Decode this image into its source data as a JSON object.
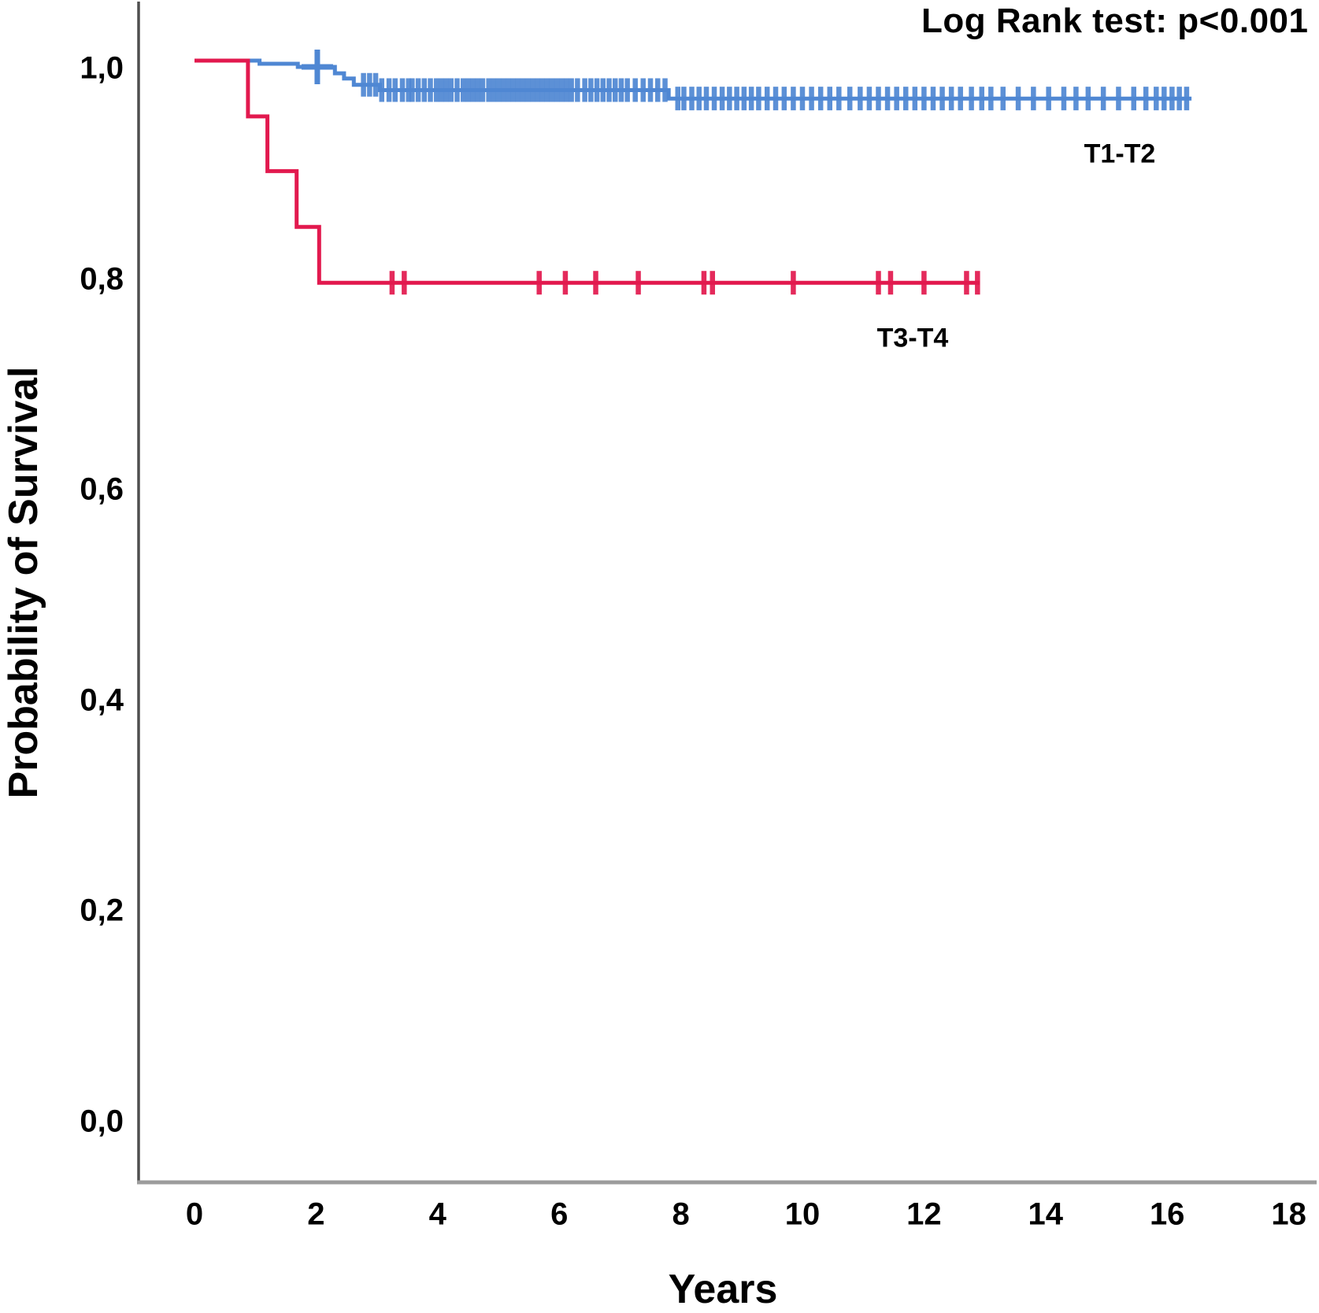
{
  "chart_data": {
    "type": "line",
    "subtype": "kaplan-meier-step",
    "title": "",
    "annotation": "Log Rank test: p<0.001",
    "xlabel": "Years",
    "ylabel": "Probability of Survival",
    "xlim": [
      0,
      18
    ],
    "ylim": [
      0.0,
      1.0
    ],
    "grid": false,
    "xticks": {
      "values": [
        0,
        2,
        4,
        6,
        8,
        10,
        12,
        14,
        16,
        18
      ],
      "labels": [
        "0",
        "2",
        "4",
        "6",
        "8",
        "10",
        "12",
        "14",
        "16",
        "18"
      ]
    },
    "yticks": {
      "values": [
        0.0,
        0.2,
        0.4,
        0.6,
        0.8,
        1.0
      ],
      "labels": [
        "0,0",
        "0,2",
        "0,4",
        "0,6",
        "0,8",
        "1,0"
      ]
    },
    "series": [
      {
        "name": "T1-T2",
        "color": "#4f87d3",
        "points": [
          [
            0,
            1.0
          ],
          [
            1.07,
            1.0
          ],
          [
            1.07,
            0.997
          ],
          [
            1.7,
            0.997
          ],
          [
            1.7,
            0.994
          ],
          [
            2.31,
            0.994
          ],
          [
            2.31,
            0.988
          ],
          [
            2.46,
            0.988
          ],
          [
            2.46,
            0.983
          ],
          [
            2.62,
            0.983
          ],
          [
            2.62,
            0.977
          ],
          [
            3.05,
            0.977
          ],
          [
            3.05,
            0.972
          ],
          [
            7.8,
            0.972
          ],
          [
            7.8,
            0.964
          ],
          [
            16.4,
            0.964
          ]
        ],
        "plus_censors": [
          2.02
        ],
        "censors": [
          2.78,
          2.88,
          2.98,
          3.08,
          3.2,
          3.3,
          3.42,
          3.52,
          3.58,
          3.68,
          3.78,
          3.88,
          3.98,
          4.06,
          4.14,
          4.22,
          4.32,
          4.42,
          4.5,
          4.58,
          4.66,
          4.74,
          4.84,
          4.92,
          5.0,
          5.08,
          5.16,
          5.24,
          5.32,
          5.4,
          5.48,
          5.56,
          5.64,
          5.72,
          5.8,
          5.88,
          5.96,
          6.04,
          6.12,
          6.2,
          6.3,
          6.42,
          6.52,
          6.62,
          6.72,
          6.82,
          6.92,
          7.02,
          7.12,
          7.25,
          7.38,
          7.5,
          7.62,
          7.74,
          7.95,
          8.05,
          8.18,
          8.3,
          8.42,
          8.55,
          8.68,
          8.8,
          8.92,
          9.04,
          9.16,
          9.28,
          9.42,
          9.56,
          9.7,
          9.85,
          10.0,
          10.15,
          10.3,
          10.45,
          10.6,
          10.78,
          10.95,
          11.1,
          11.25,
          11.4,
          11.55,
          11.7,
          11.85,
          12.0,
          12.15,
          12.3,
          12.45,
          12.6,
          12.78,
          12.95,
          13.1,
          13.3,
          13.55,
          13.8,
          14.05,
          14.3,
          14.5,
          14.7,
          14.95,
          15.2,
          15.45,
          15.65,
          15.82,
          15.95,
          16.08,
          16.2,
          16.32
        ]
      },
      {
        "name": "T3-T4",
        "color": "#e2194e",
        "points": [
          [
            0,
            1.0
          ],
          [
            0.88,
            1.0
          ],
          [
            0.88,
            0.947
          ],
          [
            1.2,
            0.947
          ],
          [
            1.2,
            0.895
          ],
          [
            1.68,
            0.895
          ],
          [
            1.68,
            0.842
          ],
          [
            2.05,
            0.842
          ],
          [
            2.05,
            0.789
          ],
          [
            12.92,
            0.789
          ]
        ],
        "plus_censors": [],
        "censors": [
          3.25,
          3.45,
          5.67,
          6.1,
          6.6,
          7.3,
          8.38,
          8.52,
          9.85,
          11.25,
          11.45,
          12.0,
          12.7,
          12.88
        ]
      }
    ]
  },
  "colors": {
    "background": "#ffffff",
    "axis_vertical": "#4f4f4f",
    "axis_horizontal": "#9c9c9c",
    "text": "#000000",
    "t1_t2": "#4f87d3",
    "t3_t4": "#e2194e"
  }
}
